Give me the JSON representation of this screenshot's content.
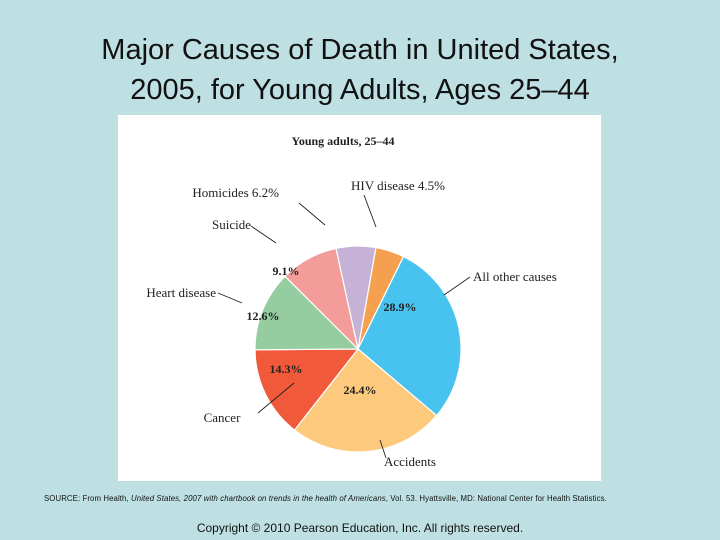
{
  "slide": {
    "title_line1": "Major Causes of Death in United States,",
    "title_line2": "2005, for Young Adults, Ages 25–44",
    "source_prefix": "SOURCE: From Health, ",
    "source_italic": "United States, 2007 with chartbook on trends in the health of Americans",
    "source_suffix": ", Vol. 53. Hyattsville, MD: National Center for Health Statistics.",
    "copyright": "Copyright © 2010 Pearson Education, Inc. All rights reserved."
  },
  "chart_data": {
    "type": "pie",
    "title": "Young adults, 25–44",
    "slices": [
      {
        "name": "HIV disease",
        "value": 4.5,
        "color": "#f5a04f",
        "label": "HIV disease 4.5%",
        "percent_label": ""
      },
      {
        "name": "All other causes",
        "value": 28.9,
        "color": "#48c3ef",
        "label": "All other causes",
        "percent_label": "28.9%"
      },
      {
        "name": "Accidents",
        "value": 24.4,
        "color": "#fdc97c",
        "label": "Accidents",
        "percent_label": "24.4%"
      },
      {
        "name": "Cancer",
        "value": 14.3,
        "color": "#f0593a",
        "label": "Cancer",
        "percent_label": "14.3%"
      },
      {
        "name": "Heart disease",
        "value": 12.6,
        "color": "#95cda0",
        "label": "Heart disease",
        "percent_label": "12.6%"
      },
      {
        "name": "Suicide",
        "value": 9.1,
        "color": "#f39c9a",
        "label": "Suicide",
        "percent_label": "9.1%"
      },
      {
        "name": "Homicides",
        "value": 6.2,
        "color": "#c6b2d6",
        "label": "Homicides 6.2%",
        "percent_label": ""
      }
    ]
  }
}
